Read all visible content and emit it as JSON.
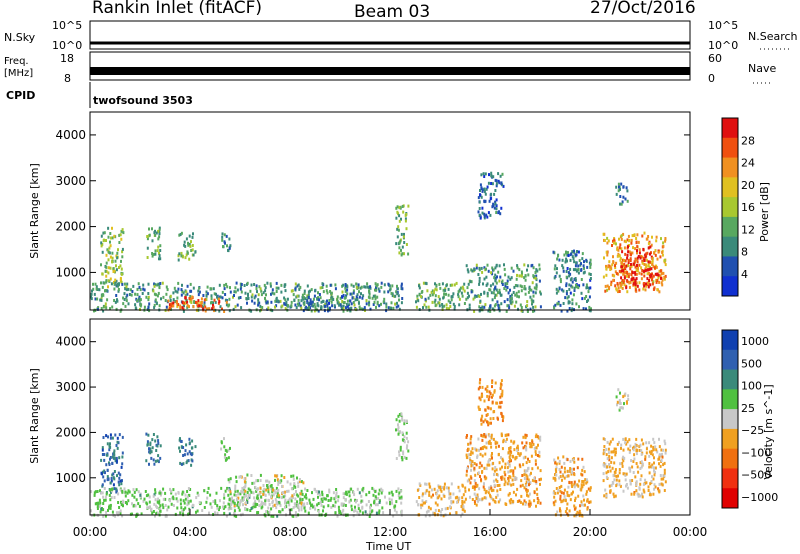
{
  "header": {
    "site": "Rankin Inlet (fitACF)",
    "beam": "Beam 03",
    "date": "27/Oct/2016"
  },
  "noise_panel": {
    "left_label": "N.Sky",
    "right_label": "N.Search",
    "left_ticks": [
      "10^5",
      "10^0"
    ],
    "right_ticks": [
      "10^5",
      "10^0"
    ]
  },
  "freq_panel": {
    "left_label_1": "Freq.",
    "left_label_2": "[MHz]",
    "right_label": "Nave",
    "left_ticks": [
      "18",
      "8"
    ],
    "right_ticks": [
      "60",
      "0"
    ]
  },
  "cpid_panel": {
    "label": "CPID",
    "program": "twofsound 3503"
  },
  "time_axis": {
    "label": "Time UT",
    "ticks": [
      "00:00",
      "04:00",
      "08:00",
      "12:00",
      "16:00",
      "20:00",
      "00:00"
    ]
  },
  "chart_data": [
    {
      "type": "heatmap",
      "name": "power",
      "xlabel": "Time UT",
      "ylabel": "Slant Range [km]",
      "xlim": [
        0,
        24
      ],
      "ylim": [
        180,
        4500
      ],
      "y_ticks": [
        1000,
        2000,
        3000,
        4000
      ],
      "colorbar": {
        "label": "Power [dB]",
        "range": [
          0,
          32
        ],
        "ticks": [
          "4",
          "8",
          "12",
          "16",
          "20",
          "24",
          "28"
        ],
        "colors": [
          "#1030d0",
          "#2050b0",
          "#3a8a7a",
          "#58a860",
          "#a8c830",
          "#e0c020",
          "#f09020",
          "#f05010",
          "#e01010"
        ]
      },
      "echo_regions": [
        {
          "t": [
            0.4,
            1.3
          ],
          "r": [
            700,
            2000
          ],
          "v": 14
        },
        {
          "t": [
            2.2,
            2.8
          ],
          "r": [
            1300,
            2000
          ],
          "v": 12
        },
        {
          "t": [
            3.5,
            4.2
          ],
          "r": [
            1300,
            1900
          ],
          "v": 12
        },
        {
          "t": [
            5.2,
            5.6
          ],
          "r": [
            1400,
            1900
          ],
          "v": 10
        },
        {
          "t": [
            0.0,
            12.5
          ],
          "r": [
            180,
            800
          ],
          "v": 10
        },
        {
          "t": [
            3.0,
            5.5
          ],
          "r": [
            180,
            500
          ],
          "v": 26
        },
        {
          "t": [
            8.5,
            10.5
          ],
          "r": [
            180,
            500
          ],
          "v": 8
        },
        {
          "t": [
            12.2,
            12.7
          ],
          "r": [
            1400,
            2500
          ],
          "v": 12
        },
        {
          "t": [
            13.0,
            15.0
          ],
          "r": [
            180,
            800
          ],
          "v": 12
        },
        {
          "t": [
            15.0,
            18.0
          ],
          "r": [
            180,
            1200
          ],
          "v": 10
        },
        {
          "t": [
            15.5,
            16.5
          ],
          "r": [
            2200,
            3200
          ],
          "v": 6
        },
        {
          "t": [
            18.5,
            20.0
          ],
          "r": [
            180,
            1500
          ],
          "v": 8
        },
        {
          "t": [
            20.5,
            23.0
          ],
          "r": [
            600,
            1900
          ],
          "v": 22
        },
        {
          "t": [
            21.2,
            22.8
          ],
          "r": [
            700,
            1600
          ],
          "v": 29
        },
        {
          "t": [
            21.0,
            21.5
          ],
          "r": [
            2500,
            3000
          ],
          "v": 8
        }
      ]
    },
    {
      "type": "heatmap",
      "name": "velocity",
      "xlabel": "Time UT",
      "ylabel": "Slant Range [km]",
      "xlim": [
        0,
        24
      ],
      "ylim": [
        180,
        4500
      ],
      "y_ticks": [
        1000,
        2000,
        3000,
        4000
      ],
      "colorbar": {
        "label": "Velocity [m s^-1]",
        "range": [
          -1300,
          1300
        ],
        "ticks": [
          "1000",
          "500",
          "100",
          "25",
          "−25",
          "−100",
          "−500",
          "−1000"
        ],
        "colors": [
          "#1040b0",
          "#3060b0",
          "#3a8a7a",
          "#50c040",
          "#c8c8c8",
          "#f0a020",
          "#f07010",
          "#f03010",
          "#e00000"
        ]
      },
      "echo_regions": [
        {
          "t": [
            0.4,
            1.3
          ],
          "r": [
            700,
            2000
          ],
          "v": 800
        },
        {
          "t": [
            2.2,
            2.8
          ],
          "r": [
            1300,
            2000
          ],
          "v": 700
        },
        {
          "t": [
            3.5,
            4.2
          ],
          "r": [
            1300,
            1900
          ],
          "v": 700
        },
        {
          "t": [
            5.2,
            5.6
          ],
          "r": [
            1400,
            1900
          ],
          "v": 150
        },
        {
          "t": [
            0.0,
            12.5
          ],
          "r": [
            180,
            800
          ],
          "v": 200
        },
        {
          "t": [
            5.5,
            8.5
          ],
          "r": [
            400,
            1100
          ],
          "v": 10
        },
        {
          "t": [
            12.2,
            12.7
          ],
          "r": [
            1400,
            2500
          ],
          "v": 150
        },
        {
          "t": [
            13.0,
            15.0
          ],
          "r": [
            180,
            900
          ],
          "v": -200
        },
        {
          "t": [
            15.0,
            18.0
          ],
          "r": [
            400,
            2000
          ],
          "v": -300
        },
        {
          "t": [
            15.5,
            16.5
          ],
          "r": [
            2200,
            3200
          ],
          "v": -400
        },
        {
          "t": [
            18.5,
            20.0
          ],
          "r": [
            180,
            1500
          ],
          "v": -250
        },
        {
          "t": [
            20.5,
            23.0
          ],
          "r": [
            600,
            1900
          ],
          "v": -200
        },
        {
          "t": [
            21.0,
            21.5
          ],
          "r": [
            2500,
            3000
          ],
          "v": 10
        }
      ]
    }
  ]
}
